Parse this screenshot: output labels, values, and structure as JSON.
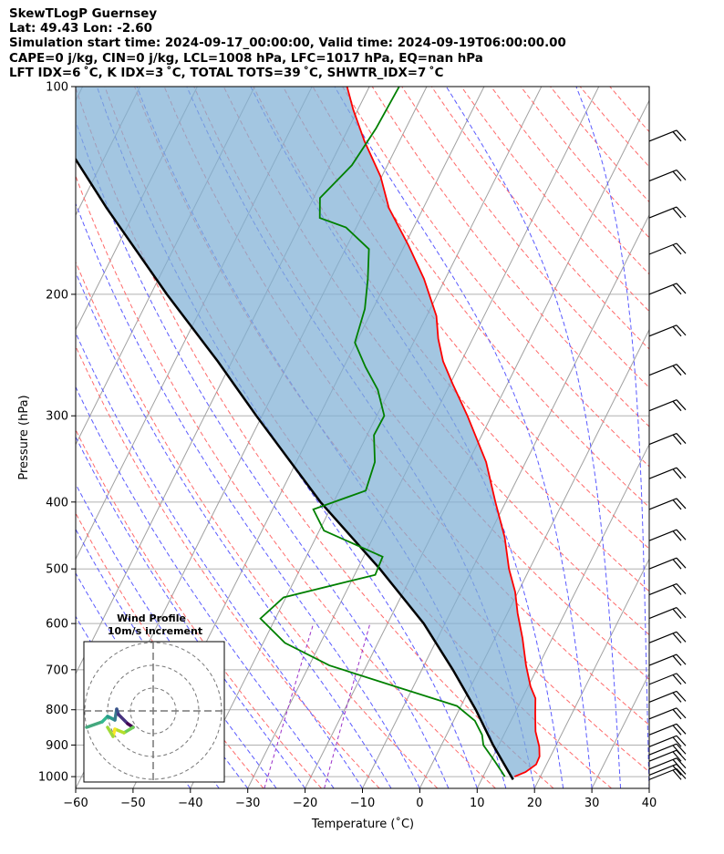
{
  "header": {
    "line1": "SkewTLogP Guernsey",
    "line2": "Lat: 49.43   Lon: -2.60",
    "line3": "Simulation start time: 2024-09-17_00:00:00, Valid time: 2024-09-19T06:00:00.00",
    "line4": "CAPE=0 j/kg, CIN=0 j/kg, LCL=1008 hPa, LFC=1017 hPa, EQ=nan hPa",
    "line5": "LFT IDX=6 ˚C, K IDX=3 ˚C, TOTAL TOTS=39 ˚C, SHWTR_IDX=7 ˚C"
  },
  "chart_data": {
    "type": "line",
    "subtype": "skew-t log-p",
    "xlabel": "Temperature (˚C)",
    "ylabel": "Pressure (hPa)",
    "xlim": [
      -60,
      40
    ],
    "ylim": [
      1040,
      100
    ],
    "x_ticks": [
      -60,
      -50,
      -40,
      -30,
      -20,
      -10,
      0,
      10,
      20,
      30,
      40
    ],
    "x_tick_labels": [
      "−60",
      "−50",
      "−40",
      "−30",
      "−20",
      "−10",
      "0",
      "10",
      "20",
      "30",
      "40"
    ],
    "y_ticks": [
      1000,
      900,
      800,
      700,
      600,
      500,
      400,
      300,
      200,
      100
    ],
    "y_tick_labels": [
      "1000",
      "900",
      "800",
      "700",
      "600",
      "500",
      "400",
      "300",
      "200",
      "100"
    ],
    "colors": {
      "temperature": "#ff0000",
      "dewpoint": "#008000",
      "parcel": "#000000",
      "cape_fill": "#7fb0d6",
      "dry_adiabat": "#ff6a6a",
      "moist_adiabat": "#5a5aff",
      "mixing_ratio": "#9b30c8",
      "isotherm": "#a0a0a0",
      "grid": "#b0b0b0"
    },
    "series": [
      {
        "name": "Temperature",
        "points": [
          {
            "p": 1000,
            "t": 15.5
          },
          {
            "p": 985,
            "t": 17
          },
          {
            "p": 960,
            "t": 18.2
          },
          {
            "p": 935,
            "t": 18.1
          },
          {
            "p": 905,
            "t": 17.2
          },
          {
            "p": 860,
            "t": 15.2
          },
          {
            "p": 810,
            "t": 13.6
          },
          {
            "p": 770,
            "t": 12.3
          },
          {
            "p": 740,
            "t": 10.4
          },
          {
            "p": 690,
            "t": 7.8
          },
          {
            "p": 630,
            "t": 4.8
          },
          {
            "p": 580,
            "t": 1.8
          },
          {
            "p": 540,
            "t": -0.5
          },
          {
            "p": 500,
            "t": -3.6
          },
          {
            "p": 450,
            "t": -7.1
          },
          {
            "p": 400,
            "t": -11.8
          },
          {
            "p": 350,
            "t": -16.9
          },
          {
            "p": 300,
            "t": -24.2
          },
          {
            "p": 270,
            "t": -29.5
          },
          {
            "p": 250,
            "t": -33.2
          },
          {
            "p": 232,
            "t": -36
          },
          {
            "p": 215,
            "t": -38.3
          },
          {
            "p": 190,
            "t": -43.7
          },
          {
            "p": 170,
            "t": -49.3
          },
          {
            "p": 150,
            "t": -56
          },
          {
            "p": 135,
            "t": -60.2
          },
          {
            "p": 120,
            "t": -66.1
          },
          {
            "p": 108,
            "t": -70.8
          },
          {
            "p": 100,
            "t": -73.9
          }
        ]
      },
      {
        "name": "Dewpoint",
        "points": [
          {
            "p": 1000,
            "t": 13.8
          },
          {
            "p": 985,
            "t": 12.9
          },
          {
            "p": 950,
            "t": 10.7
          },
          {
            "p": 900,
            "t": 7.3
          },
          {
            "p": 870,
            "t": 6.2
          },
          {
            "p": 830,
            "t": 3.7
          },
          {
            "p": 790,
            "t": -0.7
          },
          {
            "p": 740,
            "t": -13.2
          },
          {
            "p": 690,
            "t": -26.5
          },
          {
            "p": 640,
            "t": -36.2
          },
          {
            "p": 590,
            "t": -42.6
          },
          {
            "p": 550,
            "t": -40.4
          },
          {
            "p": 510,
            "t": -26.4
          },
          {
            "p": 480,
            "t": -26.7
          },
          {
            "p": 440,
            "t": -39.2
          },
          {
            "p": 410,
            "t": -42.9
          },
          {
            "p": 385,
            "t": -35.4
          },
          {
            "p": 350,
            "t": -36.3
          },
          {
            "p": 320,
            "t": -38.8
          },
          {
            "p": 300,
            "t": -38.7
          },
          {
            "p": 275,
            "t": -42.1
          },
          {
            "p": 255,
            "t": -46.2
          },
          {
            "p": 235,
            "t": -50.2
          },
          {
            "p": 210,
            "t": -51.4
          },
          {
            "p": 190,
            "t": -53.5
          },
          {
            "p": 172,
            "t": -55.9
          },
          {
            "p": 160,
            "t": -61.8
          },
          {
            "p": 155,
            "t": -67.2
          },
          {
            "p": 145,
            "t": -68.9
          },
          {
            "p": 130,
            "t": -66.2
          },
          {
            "p": 115,
            "t": -65.2
          },
          {
            "p": 100,
            "t": -64.8
          }
        ]
      },
      {
        "name": "Parcel",
        "points": [
          {
            "p": 1010,
            "t": 15.5
          },
          {
            "p": 900,
            "t": 9
          },
          {
            "p": 800,
            "t": 2.9
          },
          {
            "p": 700,
            "t": -4.6
          },
          {
            "p": 600,
            "t": -13.7
          },
          {
            "p": 500,
            "t": -26.1
          },
          {
            "p": 400,
            "t": -42.3
          },
          {
            "p": 300,
            "t": -61
          },
          {
            "p": 250,
            "t": -72.5
          },
          {
            "p": 200,
            "t": -87.2
          },
          {
            "p": 150,
            "t": -105.2
          },
          {
            "p": 100,
            "t": -129.3
          }
        ]
      }
    ],
    "wind_barbs": [
      {
        "p": 1010
      },
      {
        "p": 995
      },
      {
        "p": 975
      },
      {
        "p": 950
      },
      {
        "p": 930
      },
      {
        "p": 905
      },
      {
        "p": 870
      },
      {
        "p": 825
      },
      {
        "p": 780
      },
      {
        "p": 735
      },
      {
        "p": 690
      },
      {
        "p": 640
      },
      {
        "p": 590
      },
      {
        "p": 545
      },
      {
        "p": 500
      },
      {
        "p": 455
      },
      {
        "p": 410
      },
      {
        "p": 370
      },
      {
        "p": 330
      },
      {
        "p": 295
      },
      {
        "p": 262
      },
      {
        "p": 230
      },
      {
        "p": 200
      },
      {
        "p": 175
      },
      {
        "p": 155
      },
      {
        "p": 137
      },
      {
        "p": 120
      }
    ],
    "inset": {
      "title_line1": "Wind Profile",
      "title_line2": "10m/s increment"
    }
  }
}
